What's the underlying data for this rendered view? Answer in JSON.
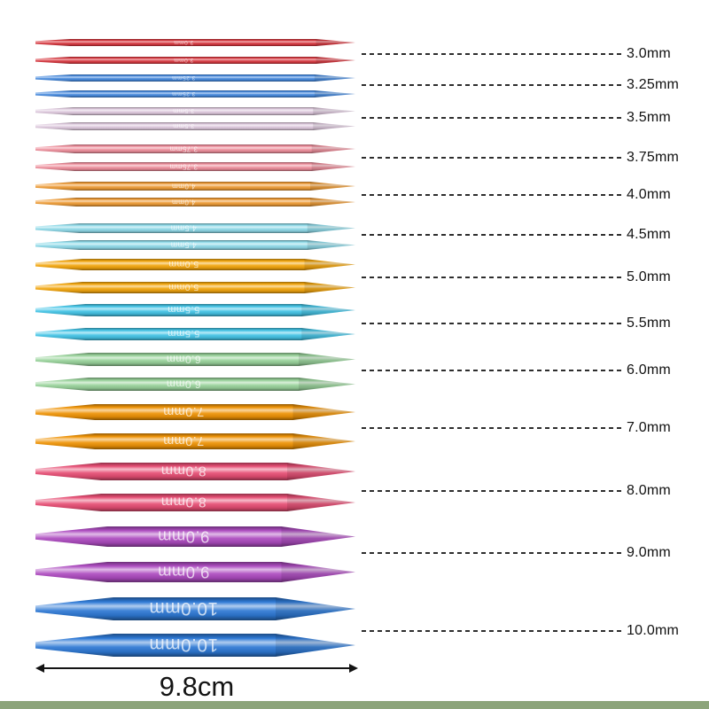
{
  "diagram": {
    "length_label": "9.8cm",
    "sizes": [
      {
        "label": "3.0mm",
        "marking": "3.0mm",
        "mm": 3.0,
        "color": "#d8373f"
      },
      {
        "label": "3.25mm",
        "marking": "3.25mm",
        "mm": 3.25,
        "color": "#4488dd"
      },
      {
        "label": "3.5mm",
        "marking": "3.5mm",
        "mm": 3.5,
        "color": "#ddc8dc"
      },
      {
        "label": "3.75mm",
        "marking": "3.75mm",
        "mm": 3.75,
        "color": "#ee8e9b"
      },
      {
        "label": "4.0mm",
        "marking": "4.0mm",
        "mm": 4.0,
        "color": "#ee9b35"
      },
      {
        "label": "4.5mm",
        "marking": "4.5mm",
        "mm": 4.5,
        "color": "#8ed9e8"
      },
      {
        "label": "5.0mm",
        "marking": "5.0mm",
        "mm": 5.0,
        "color": "#f3a60d"
      },
      {
        "label": "5.5mm",
        "marking": "5.5mm",
        "mm": 5.5,
        "color": "#44c4e6"
      },
      {
        "label": "6.0mm",
        "marking": "6.0mm",
        "mm": 6.0,
        "color": "#98d29a"
      },
      {
        "label": "7.0mm",
        "marking": "7.0mm",
        "mm": 7.0,
        "color": "#ef9306"
      },
      {
        "label": "8.0mm",
        "marking": "8.0mm",
        "mm": 8.0,
        "color": "#e64e74"
      },
      {
        "label": "9.0mm",
        "marking": "9.0mm",
        "mm": 9.0,
        "color": "#ad4cc0"
      },
      {
        "label": "10.0mm",
        "marking": "10.0mm",
        "mm": 10.0,
        "color": "#2e79d5"
      }
    ],
    "colors": {
      "background": "#ffffff",
      "leader_line": "#2d2d2d",
      "label_text": "#111111",
      "dimension": "#141414",
      "footer_band": "#8ca47a"
    }
  }
}
